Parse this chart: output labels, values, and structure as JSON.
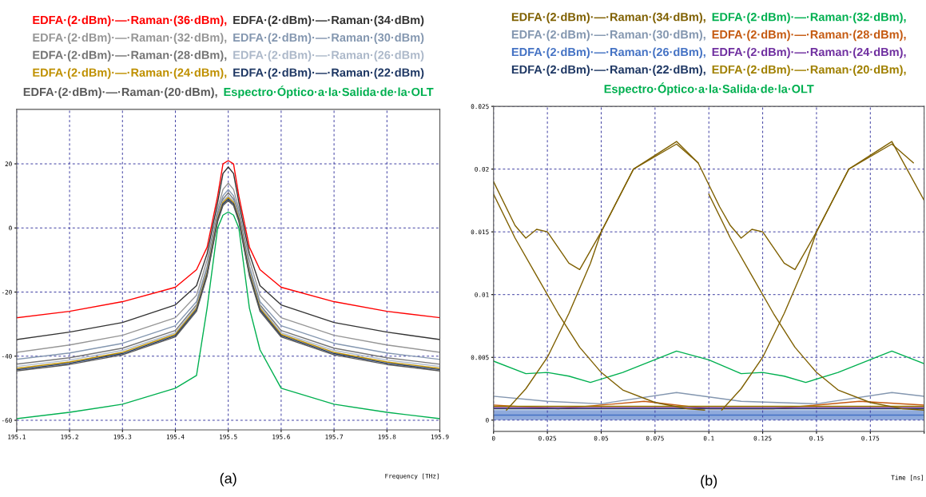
{
  "chart_data": [
    {
      "type": "line",
      "legend": "top",
      "grid": true,
      "xlabel": "Frequency [THz]",
      "annotations": [
        "(a)"
      ],
      "xlim": [
        195.1,
        195.9
      ],
      "xticks": [
        195.1,
        195.2,
        195.3,
        195.4,
        195.5,
        195.6,
        195.7,
        195.8,
        195.9
      ],
      "ylim": [
        -63,
        37
      ],
      "yticks": [
        -60,
        -40,
        -20,
        0,
        20
      ],
      "x": [
        195.1,
        195.2,
        195.3,
        195.4,
        195.44,
        195.46,
        195.48,
        195.49,
        195.5,
        195.51,
        195.52,
        195.54,
        195.56,
        195.6,
        195.7,
        195.8,
        195.9
      ],
      "series": [
        {
          "name": "EDFA·(2·dBm)·—·Raman·(36·dBm),",
          "color": "#ff0000",
          "values": [
            -28,
            -26,
            -23,
            -18.5,
            -13,
            -6,
            10,
            20,
            21,
            20,
            10,
            -6,
            -13,
            -18.5,
            -23,
            -26,
            -28
          ]
        },
        {
          "name": "EDFA·(2·dBm)·—·Raman·(34·dBm)",
          "color": "#333333",
          "values": [
            -34.8,
            -32.5,
            -29.5,
            -24,
            -18,
            -8,
            8,
            17,
            19,
            17,
            8,
            -8,
            -18,
            -24,
            -29.5,
            -32.5,
            -34.8
          ]
        },
        {
          "name": "EDFA·(2·dBm)·—·Raman·(32·dBm),",
          "color": "#969696",
          "values": [
            -38.8,
            -36.5,
            -33.5,
            -28,
            -21,
            -10,
            6,
            12,
            14,
            12,
            6,
            -10,
            -21,
            -28,
            -33.5,
            -36.5,
            -38.8
          ]
        },
        {
          "name": "EDFA·(2·dBm)·—·Raman·(30·dBm)",
          "color": "#8497b0",
          "values": [
            -41,
            -39,
            -36,
            -30.5,
            -23,
            -12,
            5,
            10,
            12,
            10,
            5,
            -12,
            -23,
            -30.5,
            -36,
            -39,
            -41
          ]
        },
        {
          "name": "EDFA·(2·dBm)·—·Raman·(28·dBm),",
          "color": "#767676",
          "values": [
            -42.5,
            -40.5,
            -37.5,
            -32,
            -24,
            -13,
            4,
            9,
            11,
            9,
            4,
            -13,
            -24,
            -32,
            -37.5,
            -40.5,
            -42.5
          ]
        },
        {
          "name": "EDFA·(2·dBm)·—·Raman·(26·dBm)",
          "color": "#adb9ca",
          "values": [
            -43.2,
            -41.2,
            -38.2,
            -32.7,
            -24.5,
            -13.5,
            3.5,
            8.5,
            10,
            8.5,
            3.5,
            -13.5,
            -24.5,
            -32.7,
            -38.2,
            -41.2,
            -43.2
          ]
        },
        {
          "name": "EDFA·(2·dBm)·—·Raman·(24·dBm),",
          "color": "#bf9000",
          "values": [
            -43.8,
            -41.8,
            -38.8,
            -33.2,
            -25,
            -14,
            3,
            8,
            9.5,
            8,
            3,
            -14,
            -25,
            -33.2,
            -38.8,
            -41.8,
            -43.8
          ]
        },
        {
          "name": "EDFA·(2·dBm)·—·Raman·(22·dBm)",
          "color": "#1f3864",
          "values": [
            -44.2,
            -42.2,
            -39.2,
            -33.6,
            -25.5,
            -14.5,
            2.5,
            7.5,
            9,
            7.5,
            2.5,
            -14.5,
            -25.5,
            -33.6,
            -39.2,
            -42.2,
            -44.2
          ]
        },
        {
          "name": "EDFA·(2·dBm)·—·Raman·(20·dBm),",
          "color": "#595959",
          "values": [
            -44.6,
            -42.6,
            -39.6,
            -34,
            -26,
            -15,
            2,
            7,
            8.5,
            7,
            2,
            -15,
            -26,
            -34,
            -39.6,
            -42.6,
            -44.6
          ]
        },
        {
          "name": "Espectro·Óptico·a·la·Salida·de·la·OLT",
          "color": "#00b050",
          "values": [
            -59.5,
            -57.5,
            -55,
            -50,
            -46,
            -25,
            0,
            4,
            5,
            4,
            0,
            -25,
            -38,
            -50,
            -55,
            -57.5,
            -59.5
          ]
        }
      ]
    },
    {
      "type": "line",
      "legend": "top",
      "grid": true,
      "title": "Espectro·Óptico·a·la·Salida·de·la·OLT",
      "xlabel": "Time [ns]",
      "annotations": [
        "(b)"
      ],
      "xlim": [
        0,
        0.2
      ],
      "xticks": [
        0,
        0.025,
        0.05,
        0.075,
        0.1,
        0.125,
        0.15,
        0.175,
        {
          "value": 0.2,
          "label": null
        }
      ],
      "ylim": [
        -0.0009,
        0.025
      ],
      "yticks": [
        0,
        0.005,
        0.01,
        0.015,
        0.02,
        0.025
      ],
      "series": [
        {
          "name": "EDFA·(2·dBm)·—·Raman·(34·dBm),",
          "color": "#7f6000",
          "x": [
            0,
            0.01,
            0.015,
            0.02,
            0.025,
            0.035,
            0.04,
            0.05,
            0.065,
            0.085,
            0.095,
            0.105,
            0.11,
            0.115,
            0.12,
            0.125,
            0.135,
            0.14,
            0.15,
            0.165,
            0.185,
            0.2
          ],
          "values": [
            0.019,
            0.0155,
            0.0145,
            0.0152,
            0.015,
            0.0125,
            0.012,
            0.015,
            0.02,
            0.0222,
            0.0205,
            0.017,
            0.0155,
            0.0145,
            0.0152,
            0.015,
            0.0125,
            0.012,
            0.015,
            0.02,
            0.0222,
            0.0175
          ]
        },
        {
          "name": "EDFA·(2·dBm)·—·Raman·(32·dBm),",
          "color": "#00b050",
          "x": [
            0,
            0.015,
            0.025,
            0.035,
            0.045,
            0.06,
            0.085,
            0.1,
            0.115,
            0.125,
            0.135,
            0.145,
            0.16,
            0.185,
            0.2
          ],
          "values": [
            0.0047,
            0.0037,
            0.0038,
            0.0035,
            0.003,
            0.0038,
            0.0055,
            0.0048,
            0.0037,
            0.0038,
            0.0035,
            0.003,
            0.0038,
            0.0055,
            0.0045
          ]
        },
        {
          "name": "EDFA·(2·dBm)·—·Raman·(30·dBm),",
          "color": "#8497b0",
          "x": [
            0,
            0.025,
            0.05,
            0.085,
            0.115,
            0.15,
            0.185,
            0.2
          ],
          "values": [
            0.0019,
            0.0015,
            0.0013,
            0.0022,
            0.0015,
            0.0013,
            0.0022,
            0.0019
          ]
        },
        {
          "name": "EDFA·(2·dBm)·—·Raman·(28·dBm),",
          "color": "#c55a11",
          "x": [
            0,
            0.03,
            0.07,
            0.1,
            0.13,
            0.17,
            0.2
          ],
          "values": [
            0.0012,
            0.0009,
            0.0015,
            0.0009,
            0.0009,
            0.0015,
            0.0012
          ]
        },
        {
          "name": "EDFA·(2·dBm)·—·Raman·(26·dBm),",
          "color": "#4472c4",
          "x": [
            0,
            0.1,
            0.2
          ],
          "values": [
            0.0004,
            0.0004,
            0.0004
          ],
          "lower": [
            0,
            0,
            0
          ],
          "upper": [
            0.0008,
            0.0008,
            0.0008
          ]
        },
        {
          "name": "EDFA·(2·dBm)·—·Raman·(24·dBm),",
          "color": "#7030a0",
          "x": [
            0,
            0.1,
            0.2
          ],
          "values": [
            0.001,
            0.001,
            0.001
          ]
        },
        {
          "name": "EDFA·(2·dBm)·—·Raman·(22·dBm),",
          "color": "#1f3864",
          "x": [
            0,
            0.1,
            0.2
          ],
          "values": [
            0.0009,
            0.0009,
            0.0009
          ]
        },
        {
          "name": "EDFA·(2·dBm)·—·Raman·(20·dBm),",
          "color": "#a08000",
          "x": [
            0,
            0.1,
            0.2
          ],
          "values": [
            0.0011,
            0.0011,
            0.0011
          ]
        },
        {
          "color": "#7f6000",
          "x": [
            0,
            0.01,
            0.02,
            0.03,
            0.04,
            0.05,
            0.06,
            0.075,
            0.09,
            0.098,
            0.099,
            0.1,
            0.11,
            0.12,
            0.13,
            0.14,
            0.15,
            0.16,
            0.175,
            0.19,
            0.2
          ],
          "values": [
            0.018,
            0.0145,
            0.0115,
            0.0085,
            0.0058,
            0.0038,
            0.0024,
            0.0014,
            0.0009,
            0.0008,
            null,
            0.018,
            0.0145,
            0.0115,
            0.0085,
            0.0058,
            0.0038,
            0.0024,
            0.0014,
            0.0009,
            0.0008
          ]
        },
        {
          "color": "#7f6000",
          "x": [
            0.006,
            0.015,
            0.025,
            0.035,
            0.045,
            0.05,
            0.065,
            0.085,
            0.095,
            0.1,
            0.106,
            0.115,
            0.125,
            0.135,
            0.145,
            0.15,
            0.165,
            0.185,
            0.195
          ],
          "values": [
            0.0008,
            0.0025,
            0.005,
            0.0085,
            0.0125,
            0.015,
            0.02,
            0.022,
            0.0205,
            null,
            0.0008,
            0.0025,
            0.005,
            0.0085,
            0.0125,
            0.015,
            0.02,
            0.022,
            0.0205
          ]
        }
      ]
    }
  ]
}
